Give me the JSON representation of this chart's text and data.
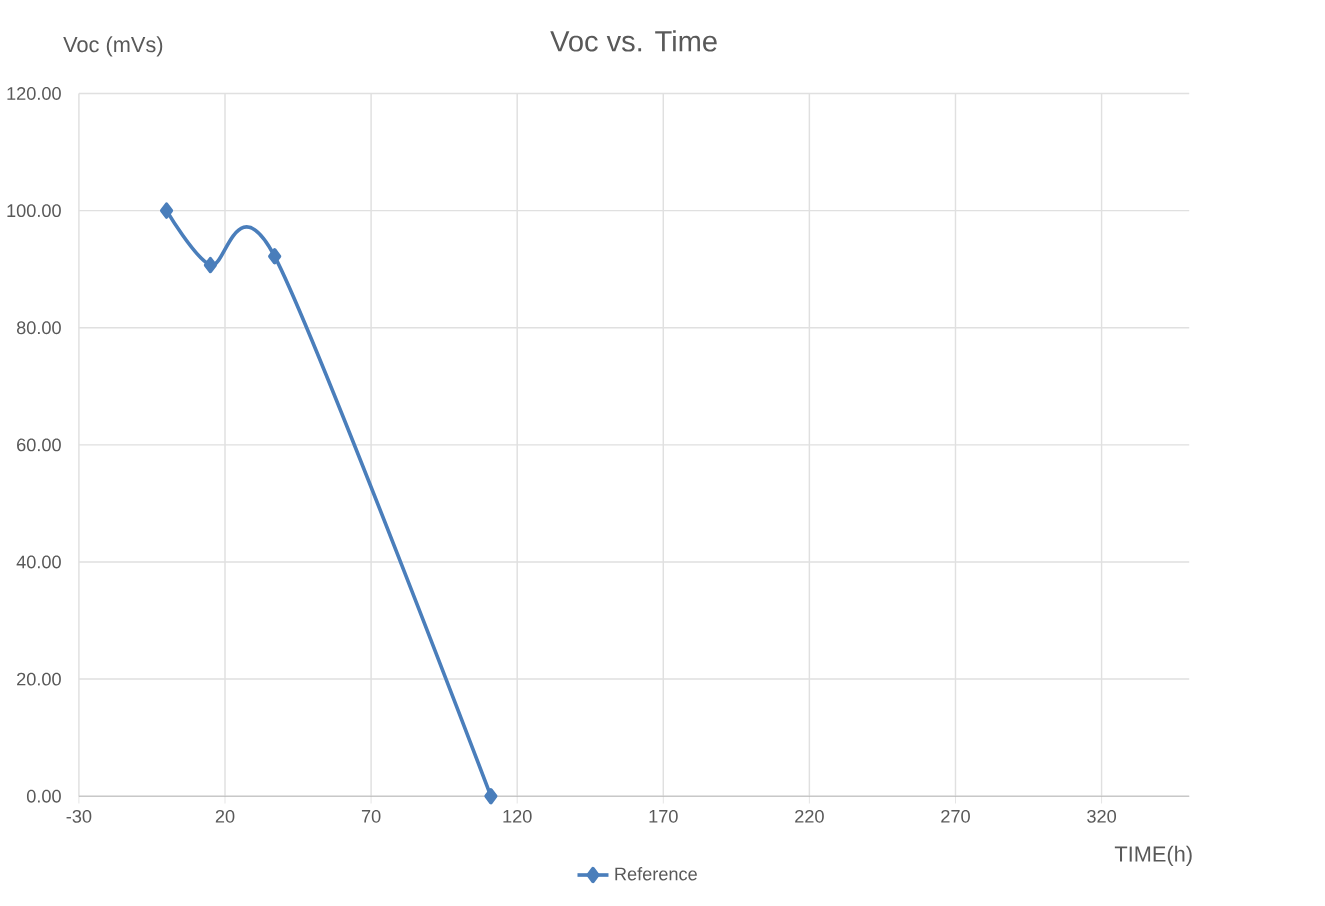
{
  "chart_data": {
    "type": "line",
    "title": "Voc vs. Time",
    "xlabel": "TIME(h)",
    "ylabel": "Voc (mVs)",
    "x": [
      0,
      15,
      37,
      111
    ],
    "series": [
      {
        "name": "Reference",
        "color": "#4a7ebb",
        "values": [
          100,
          90.7,
          92.2,
          0
        ]
      }
    ],
    "xlim": [
      -30,
      350
    ],
    "xticks": [
      -30,
      20,
      70,
      120,
      170,
      220,
      270,
      320
    ],
    "ylim": [
      0,
      120
    ],
    "yticks": [
      {
        "value": 0,
        "label": "0.00"
      },
      {
        "value": 20,
        "label": "20.00"
      },
      {
        "value": 40,
        "label": "40.00"
      },
      {
        "value": 60,
        "label": "60.00"
      },
      {
        "value": 80,
        "label": "80.00"
      },
      {
        "value": 100,
        "label": "100.00"
      },
      {
        "value": 120,
        "label": "120.00"
      }
    ],
    "grid": true,
    "legend": "bottom",
    "marker": "diamond",
    "line_style": "solid"
  }
}
